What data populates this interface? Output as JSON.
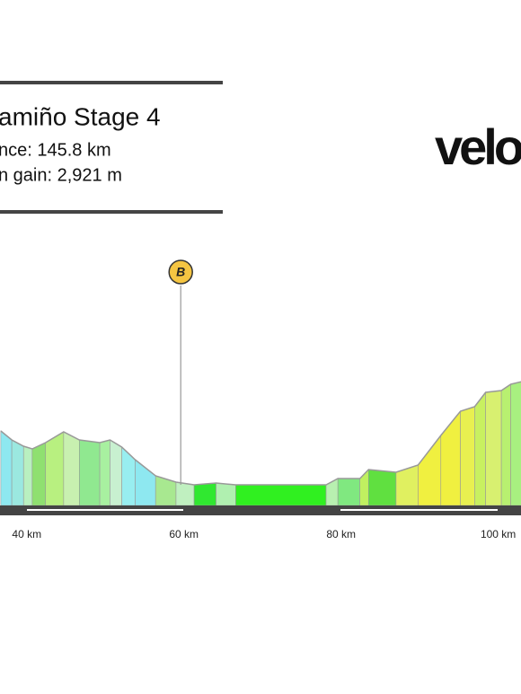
{
  "chart_data": {
    "type": "area",
    "title": "amiño Stage 4",
    "subtitle": [
      "nce: 145.8 km",
      "n gain: 2,921 m"
    ],
    "logo": "velo",
    "x": [
      36.7,
      38.1,
      39.6,
      40.7,
      42.4,
      44.7,
      46.7,
      49.3,
      50.6,
      52.1,
      53.8,
      56.4,
      59.0,
      61.3,
      64.1,
      66.6,
      78.1,
      79.6,
      82.4,
      83.5,
      87.0,
      89.8,
      92.7,
      95.2,
      97.0,
      98.4,
      100.4,
      101.6,
      103.0
    ],
    "values": [
      83,
      73,
      66,
      63,
      70,
      82,
      73,
      70,
      73,
      65,
      51,
      33,
      26,
      23,
      25,
      23,
      23,
      30,
      30,
      40,
      37,
      45,
      78,
      105,
      110,
      126,
      128,
      135,
      138
    ],
    "colors": [
      "#8ee8f0",
      "#9be8e0",
      "#b9f0c0",
      "#8fe070",
      "#b8f080",
      "#c8f0b0",
      "#90e890",
      "#a8f0a0",
      "#c8f0d0",
      "#98eef0",
      "#8ee8f0",
      "#a8e890",
      "#c0f0c0",
      "#30e830",
      "#b0f0b0",
      "#30f020",
      "#b8f0b0",
      "#80e880",
      "#c0f060",
      "#60e040",
      "#e0f060",
      "#f0f040",
      "#f0f040",
      "#e8f050",
      "#c8f060",
      "#d8f070",
      "#b8f070",
      "#a8f080"
    ],
    "xlim": [
      36.6,
      102.9
    ],
    "ylim": [
      0,
      300
    ],
    "xticks": [
      {
        "value": 40,
        "label": "40 km"
      },
      {
        "value": 60,
        "label": "60 km"
      },
      {
        "value": 80,
        "label": "80 km"
      },
      {
        "value": 100,
        "label": "100 km"
      }
    ],
    "markers": [
      {
        "x": 59.6,
        "label": "B"
      }
    ]
  }
}
